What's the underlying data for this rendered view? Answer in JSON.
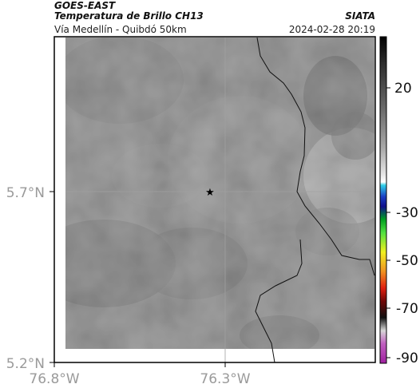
{
  "header": {
    "satellite": "GOES-EAST",
    "product": "Temperatura de Brillo CH13",
    "region": "Vía Medellín - Quibdó 50km",
    "source": "SIATA",
    "datetime": "2024-02-28 20:19"
  },
  "axes": {
    "lat_labels": [
      "5.7°N",
      "5.2°N"
    ],
    "lon_labels": [
      "76.8°W",
      "76.3°W"
    ]
  },
  "colorbar": {
    "ticks": [
      "20",
      "-30",
      "-50",
      "-70",
      "-90"
    ]
  },
  "marker": {
    "symbol": "★",
    "name": "location-star"
  },
  "colors": {
    "frame": "#000000",
    "land_gray": "#858585",
    "axis_label": "#9a9a9a"
  }
}
